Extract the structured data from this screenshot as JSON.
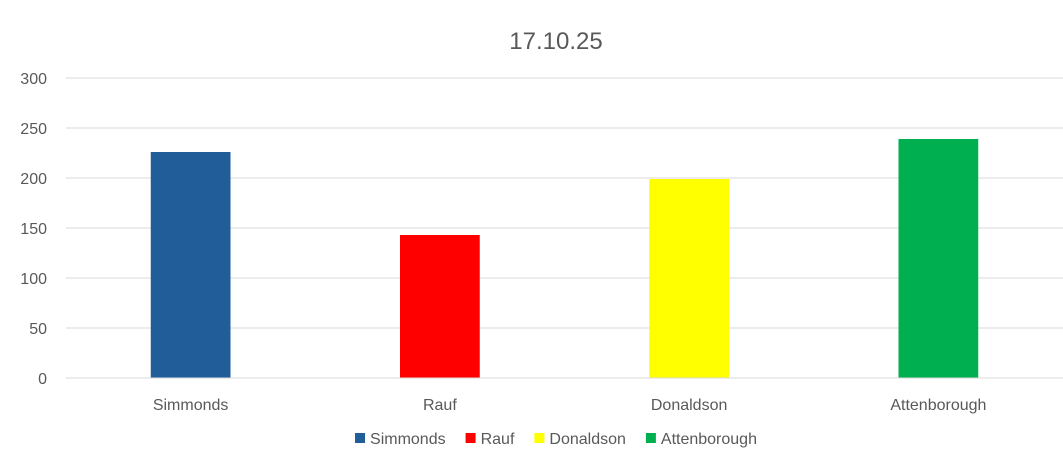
{
  "chart_data": {
    "type": "bar",
    "title": "17.10.25",
    "xlabel": "",
    "ylabel": "",
    "categories": [
      "Simmonds",
      "Rauf",
      "Donaldson",
      "Attenborough"
    ],
    "values": [
      226,
      143,
      199,
      239
    ],
    "colors": [
      "#215e99",
      "#ff0000",
      "#ffff00",
      "#00b050"
    ],
    "ylim": [
      0,
      300
    ],
    "yticks": [
      0,
      50,
      100,
      150,
      200,
      250,
      300
    ],
    "grid": true,
    "legend": {
      "position": "bottom",
      "entries": [
        "Simmonds",
        "Rauf",
        "Donaldson",
        "Attenborough"
      ]
    }
  }
}
